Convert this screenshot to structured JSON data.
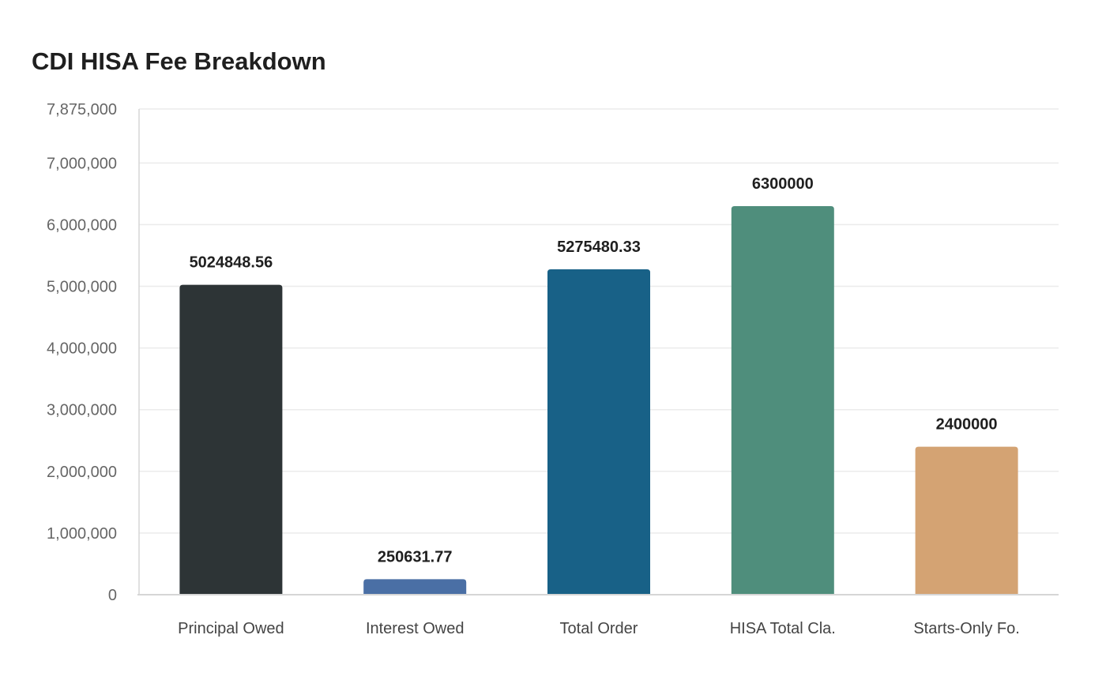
{
  "chart_data": {
    "type": "bar",
    "title": "CDI HISA Fee Breakdown",
    "categories": [
      "Principal Owed",
      "Interest Owed",
      "Total Order",
      "HISA Total Cla.",
      "Starts-Only Fo."
    ],
    "values": [
      5024848.56,
      250631.77,
      5275480.33,
      6300000,
      2400000
    ],
    "data_labels": [
      "5024848.56",
      "250631.77",
      "5275480.33",
      "6300000",
      "2400000"
    ],
    "colors": [
      "#2d3436",
      "#4a6fa5",
      "#186187",
      "#4f8e7c",
      "#d4a373"
    ],
    "ylim": [
      0,
      7875000
    ],
    "yticks": [
      0,
      1000000,
      2000000,
      3000000,
      4000000,
      5000000,
      6000000,
      7000000,
      7875000
    ],
    "ytick_labels": [
      "0",
      "1,000,000",
      "2,000,000",
      "3,000,000",
      "4,000,000",
      "5,000,000",
      "6,000,000",
      "7,000,000",
      "7,875,000"
    ],
    "grid": true,
    "xlabel": "",
    "ylabel": ""
  }
}
